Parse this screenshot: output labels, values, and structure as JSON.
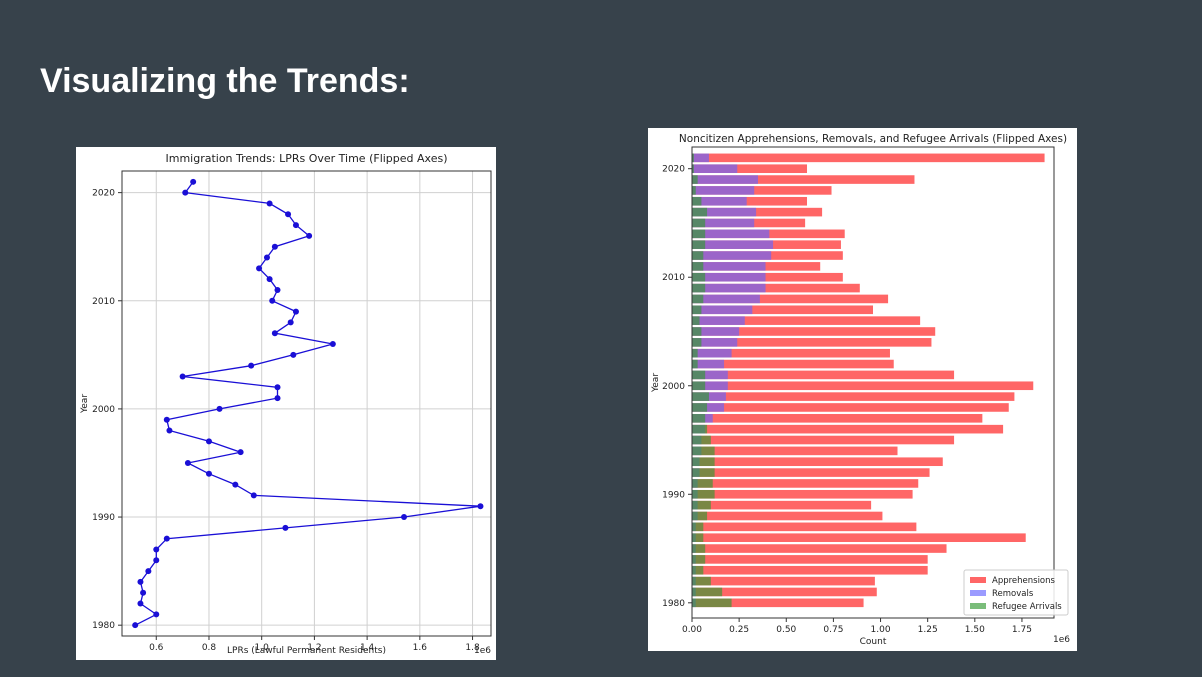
{
  "slide": {
    "title": "Visualizing the Trends:"
  },
  "chart_data": [
    {
      "type": "line",
      "title": "Immigration Trends: LPRs Over Time (Flipped Axes)",
      "xlabel": "LPRs (Lawful Permanent Residents)",
      "ylabel": "Year",
      "x_scale_label": "1e6",
      "xlim": [
        0.47,
        1.87
      ],
      "ylim": [
        1979,
        2022
      ],
      "xticks": [
        0.6,
        0.8,
        1.0,
        1.2,
        1.4,
        1.6,
        1.8
      ],
      "yticks": [
        1980,
        1990,
        2000,
        2010,
        2020
      ],
      "grid": true,
      "line_color": "#1a0fd6",
      "points": [
        {
          "year": 1980,
          "value": 0.52
        },
        {
          "year": 1981,
          "value": 0.6
        },
        {
          "year": 1982,
          "value": 0.54
        },
        {
          "year": 1983,
          "value": 0.55
        },
        {
          "year": 1984,
          "value": 0.54
        },
        {
          "year": 1985,
          "value": 0.57
        },
        {
          "year": 1986,
          "value": 0.6
        },
        {
          "year": 1987,
          "value": 0.6
        },
        {
          "year": 1988,
          "value": 0.64
        },
        {
          "year": 1989,
          "value": 1.09
        },
        {
          "year": 1990,
          "value": 1.54
        },
        {
          "year": 1991,
          "value": 1.83
        },
        {
          "year": 1992,
          "value": 0.97
        },
        {
          "year": 1993,
          "value": 0.9
        },
        {
          "year": 1994,
          "value": 0.8
        },
        {
          "year": 1995,
          "value": 0.72
        },
        {
          "year": 1996,
          "value": 0.92
        },
        {
          "year": 1997,
          "value": 0.8
        },
        {
          "year": 1998,
          "value": 0.65
        },
        {
          "year": 1999,
          "value": 0.64
        },
        {
          "year": 2000,
          "value": 0.84
        },
        {
          "year": 2001,
          "value": 1.06
        },
        {
          "year": 2002,
          "value": 1.06
        },
        {
          "year": 2003,
          "value": 0.7
        },
        {
          "year": 2004,
          "value": 0.96
        },
        {
          "year": 2005,
          "value": 1.12
        },
        {
          "year": 2006,
          "value": 1.27
        },
        {
          "year": 2007,
          "value": 1.05
        },
        {
          "year": 2008,
          "value": 1.11
        },
        {
          "year": 2009,
          "value": 1.13
        },
        {
          "year": 2010,
          "value": 1.04
        },
        {
          "year": 2011,
          "value": 1.06
        },
        {
          "year": 2012,
          "value": 1.03
        },
        {
          "year": 2013,
          "value": 0.99
        },
        {
          "year": 2014,
          "value": 1.02
        },
        {
          "year": 2015,
          "value": 1.05
        },
        {
          "year": 2016,
          "value": 1.18
        },
        {
          "year": 2017,
          "value": 1.13
        },
        {
          "year": 2018,
          "value": 1.1
        },
        {
          "year": 2019,
          "value": 1.03
        },
        {
          "year": 2020,
          "value": 0.71
        },
        {
          "year": 2021,
          "value": 0.74
        }
      ]
    },
    {
      "type": "bar",
      "orientation": "horizontal",
      "title": "Noncitizen Apprehensions, Removals, and Refugee Arrivals (Flipped Axes)",
      "xlabel": "Count",
      "ylabel": "Year",
      "x_scale_label": "1e6",
      "xlim": [
        0,
        1.92
      ],
      "ylim": [
        1978.6,
        2022.0
      ],
      "xticks": [
        "0.00",
        "0.25",
        "0.50",
        "0.75",
        "1.00",
        "1.25",
        "1.50",
        "1.75"
      ],
      "yticks": [
        1980,
        1990,
        2000,
        2010,
        2020
      ],
      "grid": false,
      "legend_position": "bottom-right",
      "series": [
        {
          "name": "Apprehensions",
          "color": "#ff6666",
          "alpha": 1.0
        },
        {
          "name": "Removals",
          "color": "#6666ff",
          "alpha": 0.65
        },
        {
          "name": "Refugee Arrivals",
          "color": "#339933",
          "alpha": 0.65
        }
      ],
      "years": [
        1980,
        1981,
        1982,
        1983,
        1984,
        1985,
        1986,
        1987,
        1988,
        1989,
        1990,
        1991,
        1992,
        1993,
        1994,
        1995,
        1996,
        1997,
        1998,
        1999,
        2000,
        2001,
        2002,
        2003,
        2004,
        2005,
        2006,
        2007,
        2008,
        2009,
        2010,
        2011,
        2012,
        2013,
        2014,
        2015,
        2016,
        2017,
        2018,
        2019,
        2020,
        2021
      ],
      "apprehensions": [
        0.91,
        0.98,
        0.97,
        1.25,
        1.25,
        1.35,
        1.77,
        1.19,
        1.01,
        0.95,
        1.17,
        1.2,
        1.26,
        1.33,
        1.09,
        1.39,
        1.65,
        1.54,
        1.68,
        1.71,
        1.81,
        1.39,
        1.07,
        1.05,
        1.27,
        1.29,
        1.21,
        0.96,
        1.04,
        0.89,
        0.8,
        0.68,
        0.8,
        0.79,
        0.81,
        0.6,
        0.69,
        0.61,
        0.74,
        1.18,
        0.61,
        1.87
      ],
      "removals": [
        0.02,
        0.02,
        0.02,
        0.02,
        0.02,
        0.02,
        0.02,
        0.02,
        0.03,
        0.03,
        0.03,
        0.03,
        0.04,
        0.04,
        0.05,
        0.05,
        0.07,
        0.11,
        0.17,
        0.18,
        0.19,
        0.19,
        0.17,
        0.21,
        0.24,
        0.25,
        0.28,
        0.32,
        0.36,
        0.39,
        0.39,
        0.39,
        0.42,
        0.43,
        0.41,
        0.33,
        0.34,
        0.29,
        0.33,
        0.35,
        0.24,
        0.09
      ],
      "refugee_arrivals": [
        0.21,
        0.16,
        0.1,
        0.06,
        0.07,
        0.07,
        0.06,
        0.06,
        0.08,
        0.1,
        0.12,
        0.11,
        0.12,
        0.12,
        0.12,
        0.1,
        0.08,
        0.07,
        0.08,
        0.09,
        0.07,
        0.07,
        0.03,
        0.03,
        0.05,
        0.05,
        0.04,
        0.05,
        0.06,
        0.07,
        0.07,
        0.06,
        0.06,
        0.07,
        0.07,
        0.07,
        0.08,
        0.05,
        0.02,
        0.03,
        0.01,
        0.01
      ]
    }
  ]
}
